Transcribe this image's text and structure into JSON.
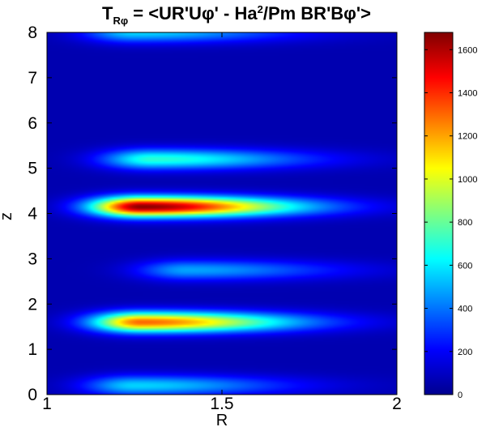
{
  "chart_data": {
    "type": "heatmap",
    "title": {
      "prefix": "T",
      "subscript": "Rφ",
      "part1": " = <UR'Uφ' - Ha",
      "superscript": "2",
      "part2": "/Pm BR'Bφ'>"
    },
    "xlabel": "R",
    "ylabel": "z",
    "xlim": [
      1,
      2
    ],
    "ylim": [
      0,
      8
    ],
    "xticks": [
      {
        "value": 1,
        "label": "1"
      },
      {
        "value": 1.5,
        "label": "1.5"
      },
      {
        "value": 2,
        "label": "2"
      }
    ],
    "yticks": [
      {
        "value": 0,
        "label": "0"
      },
      {
        "value": 1,
        "label": "1"
      },
      {
        "value": 2,
        "label": "2"
      },
      {
        "value": 3,
        "label": "3"
      },
      {
        "value": 4,
        "label": "4"
      },
      {
        "value": 5,
        "label": "5"
      },
      {
        "value": 6,
        "label": "6"
      },
      {
        "value": 7,
        "label": "7"
      },
      {
        "value": 8,
        "label": "8"
      }
    ],
    "colormap": "jet",
    "colorbar": {
      "range": [
        0,
        1680
      ],
      "ticks": [
        {
          "value": 0,
          "label": "0"
        },
        {
          "value": 200,
          "label": "200"
        },
        {
          "value": 400,
          "label": "400"
        },
        {
          "value": 600,
          "label": "600"
        },
        {
          "value": 800,
          "label": "800"
        },
        {
          "value": 1000,
          "label": "1000"
        },
        {
          "value": 1200,
          "label": "1200"
        },
        {
          "value": 1400,
          "label": "1400"
        },
        {
          "value": 1600,
          "label": "1600"
        }
      ]
    },
    "background_value": 80,
    "bands": [
      {
        "z": 0.2,
        "r_peak": 1.25,
        "peak": 560
      },
      {
        "z": 1.6,
        "r_peak": 1.27,
        "peak": 1300
      },
      {
        "z": 2.75,
        "r_peak": 1.4,
        "peak": 480
      },
      {
        "z": 4.15,
        "r_peak": 1.27,
        "peak": 1660
      },
      {
        "z": 5.2,
        "r_peak": 1.3,
        "peak": 700
      },
      {
        "z": 8.0,
        "r_peak": 1.25,
        "peak": 560
      }
    ]
  }
}
